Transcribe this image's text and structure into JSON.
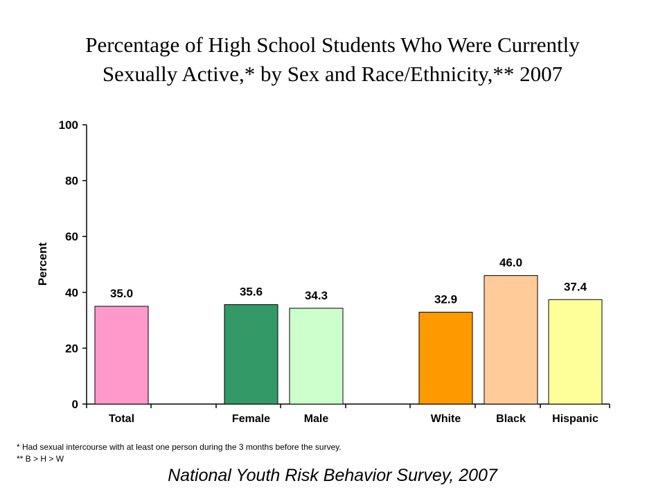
{
  "chart_data": {
    "type": "bar",
    "title_line1": "Percentage of High School Students Who Were Currently",
    "title_line2": "Sexually  Active,*  by Sex and Race/Ethnicity,**  2007",
    "ylabel": "Percent",
    "xlabel": "",
    "ylim": [
      0,
      100
    ],
    "yticks": [
      "0",
      "20",
      "40",
      "60",
      "80",
      "100"
    ],
    "grid": false,
    "categories": [
      "Total",
      "Female",
      "Male",
      "White",
      "Black",
      "Hispanic"
    ],
    "values": [
      35.0,
      35.6,
      34.3,
      32.9,
      46.0,
      37.4
    ],
    "value_labels": [
      "35.0",
      "35.6",
      "34.3",
      "32.9",
      "46.0",
      "37.4"
    ],
    "colors": [
      "#ff99cc",
      "#339966",
      "#ccffcc",
      "#ff9900",
      "#ffcc99",
      "#ffff99"
    ]
  },
  "footnotes": {
    "note1": "* Had sexual intercourse with at least one person during the 3 months before the survey.",
    "note2": "** B >  H > W"
  },
  "source": "National Youth Risk Behavior Survey, 2007"
}
